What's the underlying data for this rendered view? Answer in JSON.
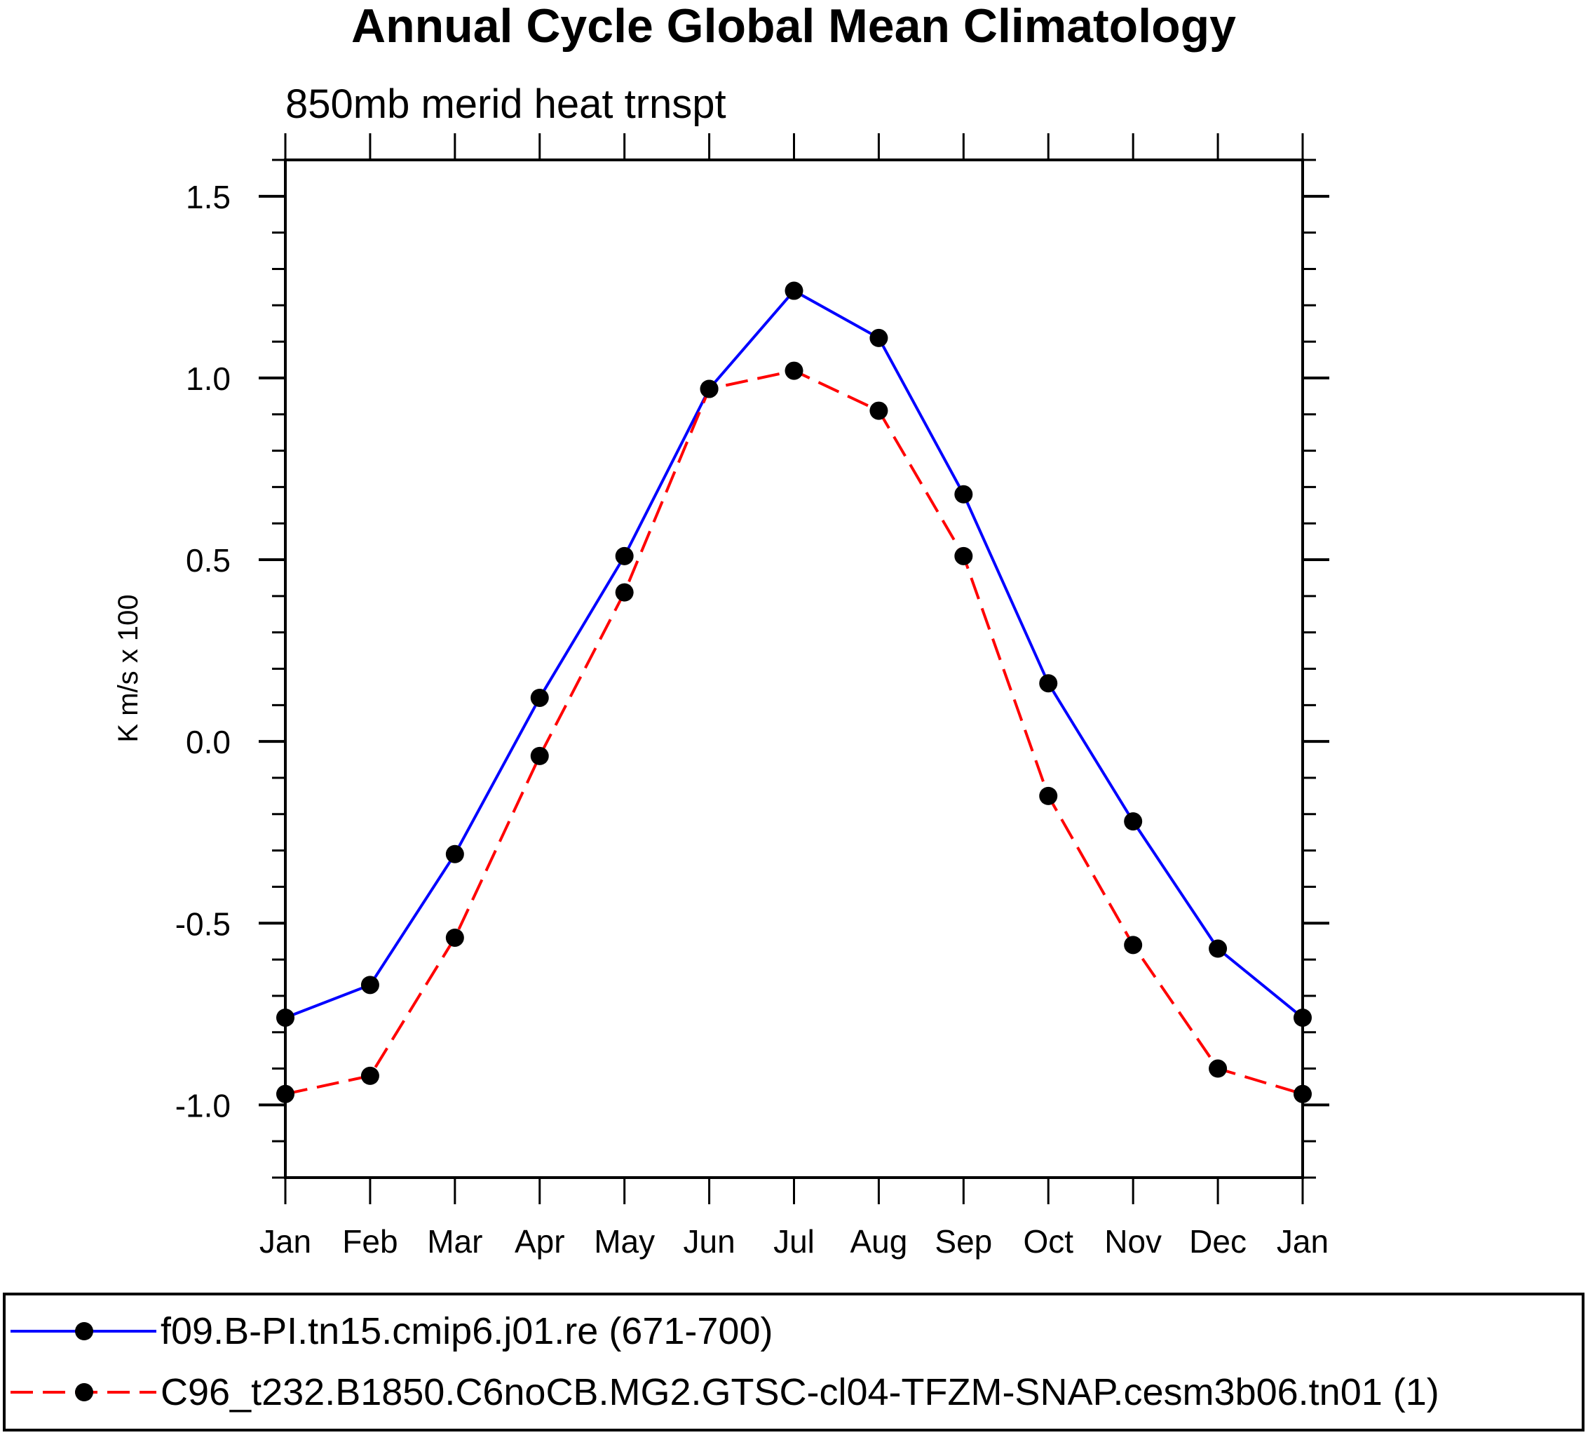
{
  "chart_data": {
    "type": "line",
    "title": "Annual Cycle Global Mean Climatology",
    "subtitle": "850mb merid heat trnspt",
    "xlabel": "",
    "ylabel": "K m/s x 100",
    "categories": [
      "Jan",
      "Feb",
      "Mar",
      "Apr",
      "May",
      "Jun",
      "Jul",
      "Aug",
      "Sep",
      "Oct",
      "Nov",
      "Dec",
      "Jan"
    ],
    "ylim": [
      -1.2,
      1.6
    ],
    "yticks_major": [
      -1.0,
      -0.5,
      0.0,
      0.5,
      1.0,
      1.5
    ],
    "ytick_labels": [
      "-1.0",
      "-0.5",
      "0.0",
      "0.5",
      "1.0",
      "1.5"
    ],
    "yticks_minor_step": 0.1,
    "grid": false,
    "legend_position": "bottom",
    "series": [
      {
        "name": "f09.B-PI.tn15.cmip6.j01.re (671-700)",
        "color": "#0000ff",
        "line_style": "solid",
        "marker": "filled-circle",
        "marker_color": "#000000",
        "values": [
          -0.76,
          -0.67,
          -0.31,
          0.12,
          0.51,
          0.97,
          1.24,
          1.11,
          0.68,
          0.16,
          -0.22,
          -0.57,
          -0.76
        ]
      },
      {
        "name": "C96_t232.B1850.C6noCB.MG2.GTSC-cl04-TFZM-SNAP.cesm3b06.tn01 (1)",
        "color": "#ff0000",
        "line_style": "dashed",
        "marker": "filled-circle",
        "marker_color": "#000000",
        "values": [
          -0.97,
          -0.92,
          -0.54,
          -0.04,
          0.41,
          0.97,
          1.02,
          0.91,
          0.51,
          -0.15,
          -0.56,
          -0.9,
          -0.97
        ]
      }
    ]
  }
}
